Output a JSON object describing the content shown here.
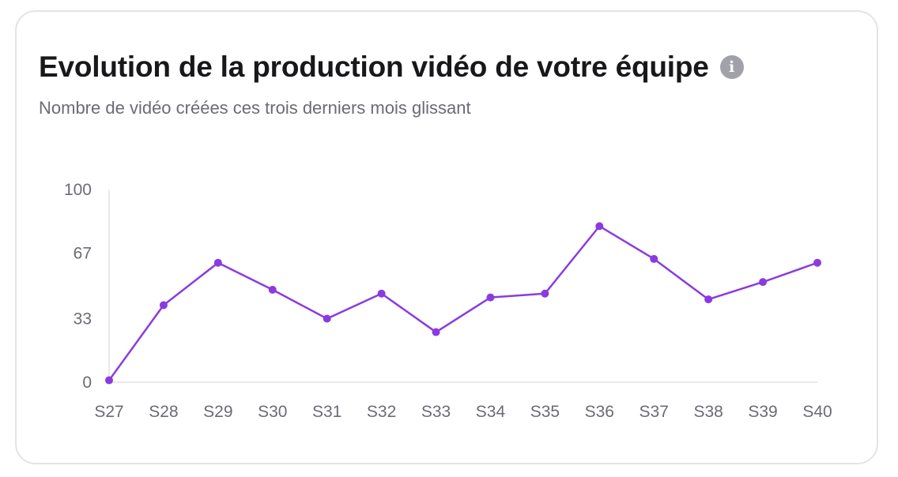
{
  "card": {
    "title": "Evolution de la production vidéo de votre équipe",
    "info_icon": "info-icon",
    "subtitle": "Nombre de vidéo créées ces trois derniers mois glissant"
  },
  "chart_data": {
    "type": "line",
    "categories": [
      "S27",
      "S28",
      "S29",
      "S30",
      "S31",
      "S32",
      "S33",
      "S34",
      "S35",
      "S36",
      "S37",
      "S38",
      "S39",
      "S40"
    ],
    "series": [
      {
        "values": [
          1,
          40,
          62,
          48,
          33,
          46,
          26,
          44,
          46,
          81,
          64,
          43,
          52,
          62
        ]
      }
    ],
    "yticks": [
      0,
      33,
      67,
      100
    ],
    "ylim": [
      0,
      100
    ],
    "xlabel": "",
    "ylabel": "",
    "grid": false,
    "color": "#8a3be0"
  }
}
